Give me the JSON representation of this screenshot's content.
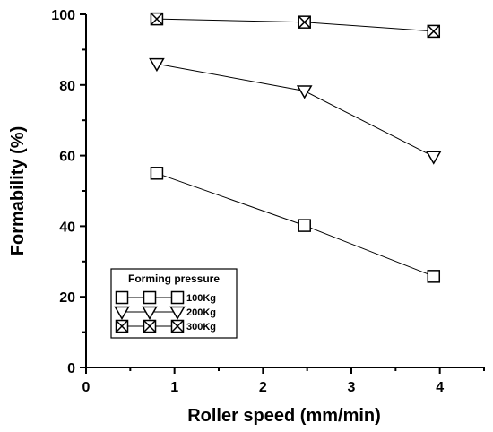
{
  "chart_data": {
    "type": "line",
    "xlabel": "Roller speed (mm/min)",
    "ylabel": "Formability (%)",
    "xlim": [
      0,
      4.5
    ],
    "ylim": [
      0,
      100
    ],
    "xticks": [
      "0",
      "1",
      "2",
      "3",
      "4"
    ],
    "yticks": [
      "0",
      "20",
      "40",
      "60",
      "80",
      "100"
    ],
    "x": [
      0.8,
      2.47,
      3.93
    ],
    "legend": {
      "title": "Forming pressure",
      "placement": "bottom-left"
    },
    "series": [
      {
        "name": "100Kg",
        "marker": "square",
        "values": [
          55,
          40.2,
          25.8
        ]
      },
      {
        "name": "200Kg",
        "marker": "triangle-down",
        "values": [
          86,
          78.3,
          59.7
        ]
      },
      {
        "name": "300Kg",
        "marker": "boxed-x",
        "values": [
          98.7,
          97.8,
          95.2
        ]
      }
    ],
    "grid": false
  }
}
